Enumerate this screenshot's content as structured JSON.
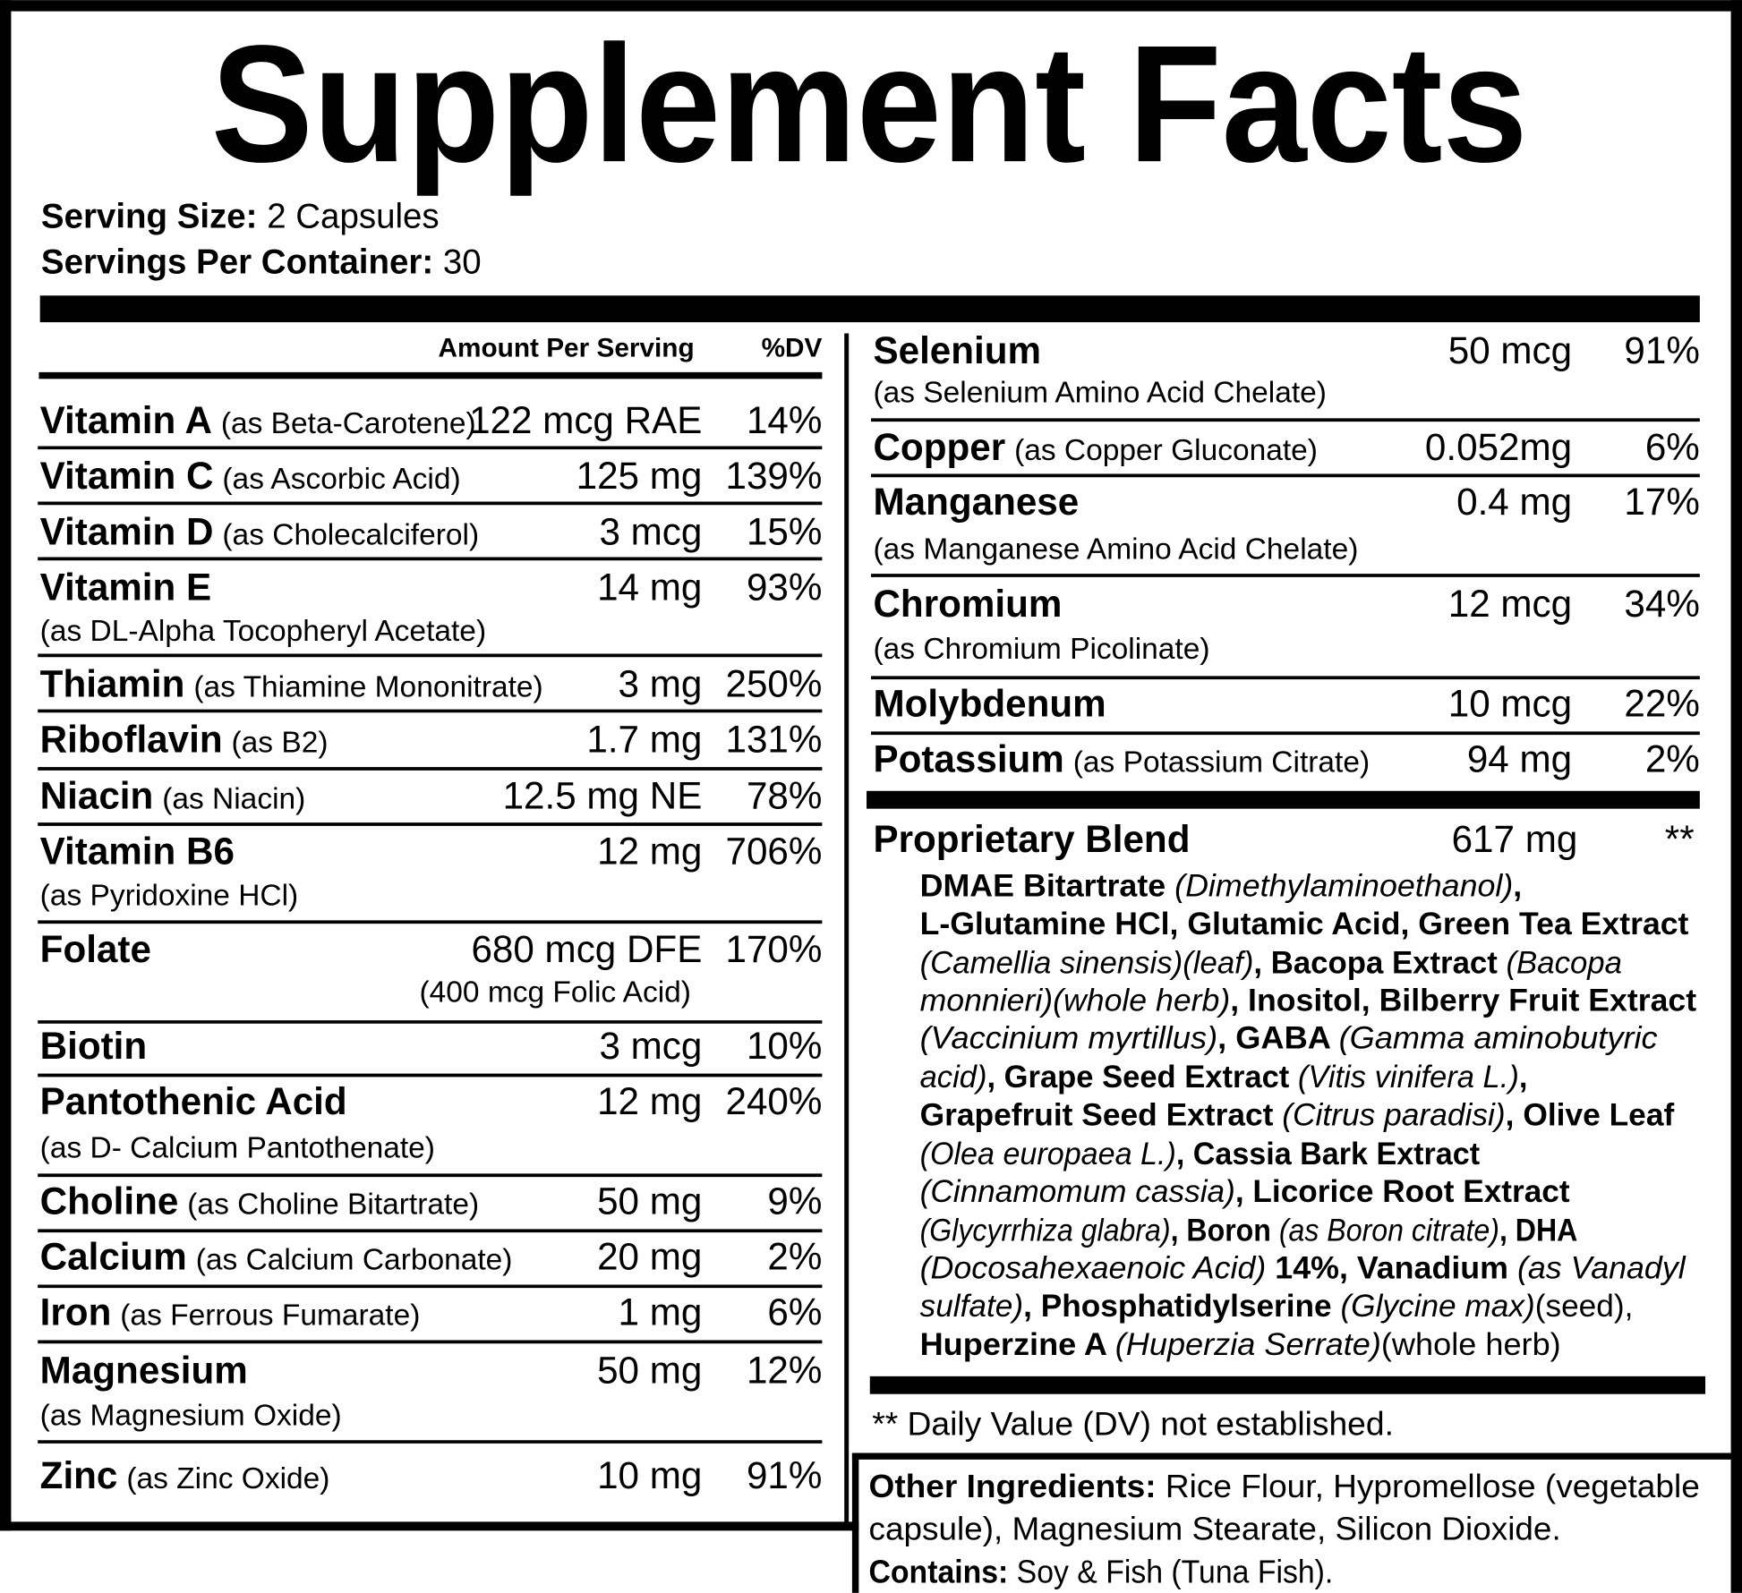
{
  "title": "Supplement Facts",
  "serving": {
    "size_label": "Serving Size:",
    "size": "2 Capsules",
    "per_container_label": "Servings Per Container:",
    "per_container": "30"
  },
  "header": {
    "amount": "Amount Per Serving",
    "dv": "%DV"
  },
  "left_rows": [
    {
      "name": "Vitamin A",
      "source": "(as Beta-Carotene)",
      "amount": "122 mcg RAE",
      "dv": "14%"
    },
    {
      "name": "Vitamin C",
      "source": "(as Ascorbic Acid)",
      "amount": "125 mg",
      "dv": "139%"
    },
    {
      "name": "Vitamin D",
      "source": "(as Cholecalciferol)",
      "amount": "3 mcg",
      "dv": "15%"
    },
    {
      "name": "Vitamin E",
      "source": "(as DL-Alpha Tocopheryl Acetate)",
      "amount": "14 mg",
      "dv": "93%"
    },
    {
      "name": "Thiamin",
      "source": "(as Thiamine Mononitrate)",
      "amount": "3 mg",
      "dv": "250%"
    },
    {
      "name": "Riboflavin",
      "source": "(as B2)",
      "amount": "1.7 mg",
      "dv": "131%"
    },
    {
      "name": "Niacin",
      "source": "(as Niacin)",
      "amount": "12.5 mg NE",
      "dv": "78%"
    },
    {
      "name": "Vitamin B6",
      "source": "(as Pyridoxine HCl)",
      "amount": "12 mg",
      "dv": "706%"
    },
    {
      "name": "Folate",
      "amount": "680 mcg DFE",
      "amount_note": "(400 mcg Folic Acid)",
      "dv": "170%"
    },
    {
      "name": "Biotin",
      "amount": "3 mcg",
      "dv": "10%"
    },
    {
      "name": "Pantothenic Acid",
      "source": "(as D- Calcium Pantothenate)",
      "amount": "12 mg",
      "dv": "240%"
    },
    {
      "name": "Choline",
      "source": "(as Choline Bitartrate)",
      "amount": "50 mg",
      "dv": "9%"
    },
    {
      "name": "Calcium",
      "source": "(as Calcium Carbonate)",
      "amount": "20 mg",
      "dv": "2%"
    },
    {
      "name": "Iron",
      "source": "(as Ferrous Fumarate)",
      "amount": "1 mg",
      "dv": "6%"
    },
    {
      "name": "Magnesium",
      "source": "(as Magnesium Oxide)",
      "amount": "50 mg",
      "dv": "12%"
    },
    {
      "name": "Zinc",
      "source": "(as Zinc Oxide)",
      "amount": "10 mg",
      "dv": "91%"
    }
  ],
  "right_rows": [
    {
      "name": "Selenium",
      "source": "(as Selenium Amino Acid Chelate)",
      "amount": "50 mcg",
      "dv": "91%"
    },
    {
      "name": "Copper",
      "source": "(as Copper Gluconate)",
      "amount": "0.052mg",
      "dv": "6%"
    },
    {
      "name": "Manganese",
      "source": "(as Manganese Amino Acid Chelate)",
      "amount": "0.4 mg",
      "dv": "17%"
    },
    {
      "name": "Chromium",
      "source": "(as Chromium Picolinate)",
      "amount": "12 mcg",
      "dv": "34%"
    },
    {
      "name": "Molybdenum",
      "amount": "10 mcg",
      "dv": "22%"
    },
    {
      "name": "Potassium",
      "source": "(as Potassium Citrate)",
      "amount": "94 mg",
      "dv": "2%"
    }
  ],
  "blend": {
    "name": "Proprietary Blend",
    "amount": "617 mg",
    "dv": "**",
    "lines": [
      [
        {
          "b": "DMAE Bitartrate "
        },
        {
          "i": "(Dimethylaminoethanol)"
        },
        {
          "b": ","
        }
      ],
      [
        {
          "b": "L-Glutamine HCl, Glutamic Acid, Green Tea Extract"
        }
      ],
      [
        {
          "i": "(Camellia sinensis)(leaf)"
        },
        {
          "b": ", Bacopa Extract "
        },
        {
          "i": "(Bacopa"
        }
      ],
      [
        {
          "i": "monnieri)(whole herb)"
        },
        {
          "b": ", Inositol, Bilberry Fruit Extract"
        }
      ],
      [
        {
          "i": "(Vaccinium myrtillus)"
        },
        {
          "b": ", GABA "
        },
        {
          "i": "(Gamma aminobutyric"
        }
      ],
      [
        {
          "i": "acid)"
        },
        {
          "b": ", Grape Seed Extract "
        },
        {
          "i": "(Vitis vinifera L.)"
        },
        {
          "b": ","
        }
      ],
      [
        {
          "b": "Grapefruit Seed Extract "
        },
        {
          "i": "(Citrus paradisi)"
        },
        {
          "b": ", Olive Leaf"
        }
      ],
      [
        {
          "i": "(Olea europaea L.)"
        },
        {
          "b": ", Cassia Bark Extract"
        }
      ],
      [
        {
          "i": "(Cinnamomum cassia)"
        },
        {
          "b": ", Licorice Root Extract"
        }
      ],
      [
        {
          "i": "(Glycyrrhiza glabra)"
        },
        {
          "b": ", Boron "
        },
        {
          "i": "(as Boron citrate)"
        },
        {
          "b": ", DHA"
        }
      ],
      [
        {
          "i": "(Docosahexaenoic Acid) "
        },
        {
          "b": "14%, Vanadium "
        },
        {
          "i": "(as Vanadyl"
        }
      ],
      [
        {
          "i": "sulfate)"
        },
        {
          "b": ", Phosphatidylserine "
        },
        {
          "i": "(Glycine max)"
        },
        {
          "t": "(seed),"
        }
      ],
      [
        {
          "b": "Huperzine A "
        },
        {
          "i": "(Huperzia Serrate)"
        },
        {
          "t": "(whole herb)"
        }
      ]
    ]
  },
  "footnote": "** Daily Value (DV) not established.",
  "other": [
    [
      {
        "b": "Other Ingredients:"
      },
      {
        "t": " Rice Flour, Hypromellose (vegetable"
      }
    ],
    [
      {
        "t": "capsule), Magnesium Stearate, Silicon Dioxide."
      }
    ],
    [
      {
        "b": "Contains:"
      },
      {
        "t": " Soy & Fish (Tuna Fish)."
      }
    ]
  ]
}
